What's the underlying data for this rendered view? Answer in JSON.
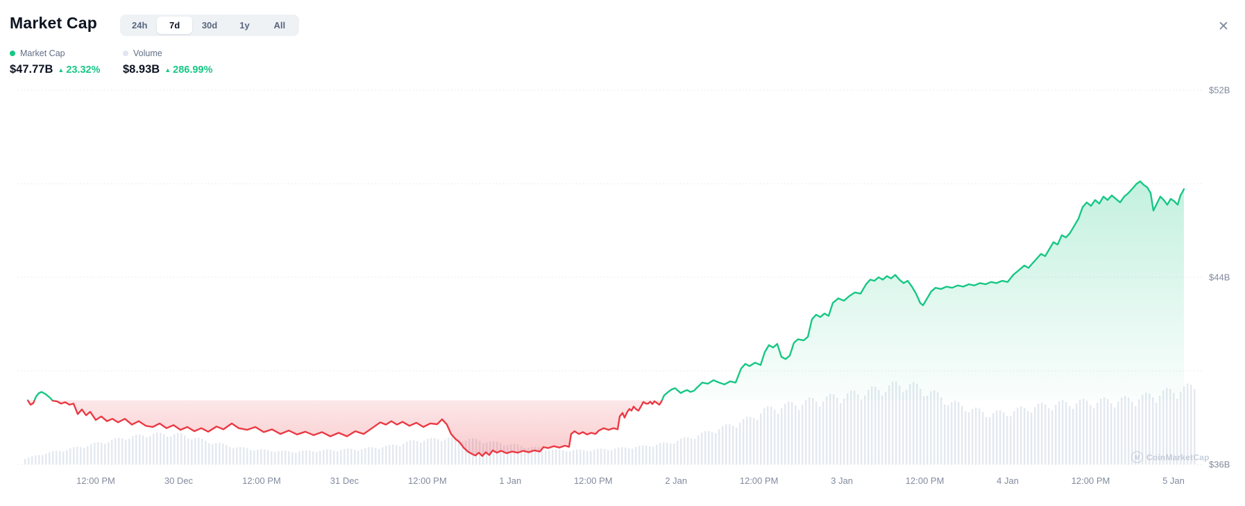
{
  "header": {
    "title": "Market Cap",
    "tabs": [
      "24h",
      "7d",
      "30d",
      "1y",
      "All"
    ],
    "active_tab": "7d",
    "close_icon": "✕"
  },
  "legend": {
    "market_cap": {
      "label": "Market Cap",
      "value": "$47.77B",
      "change": "23.32%",
      "direction": "up"
    },
    "volume": {
      "label": "Volume",
      "value": "$8.93B",
      "change": "286.99%",
      "direction": "up"
    }
  },
  "watermark": {
    "icon_letter": "M",
    "text": "CoinMarketCap"
  },
  "colors": {
    "green": "#16c784",
    "red": "#ea3943",
    "text_primary": "#0d1421",
    "text_secondary": "#616e85",
    "axis_label": "#808a9d",
    "volume_bar": "#e4e9f0",
    "gridline": "#e0e4ec",
    "tab_bar_bg": "#eff2f5",
    "watermark": "#bdc5d4"
  },
  "chart_data": {
    "type": "area",
    "title": "Market Cap",
    "range": "7d",
    "unit": "USD billions",
    "baseline_value": 38.74,
    "current_value": 47.77,
    "change_pct": 23.32,
    "volume_current": "$8.93B",
    "volume_change_pct": 286.99,
    "y_axis": {
      "labels": [
        "$52B",
        "$44B",
        "$36B"
      ],
      "label_values": [
        52,
        44,
        36
      ],
      "gridline_values": [
        52,
        48,
        44,
        40,
        36
      ]
    },
    "x_ticks": [
      "12:00 PM",
      "30 Dec",
      "12:00 PM",
      "31 Dec",
      "12:00 PM",
      "1 Jan",
      "12:00 PM",
      "2 Jan",
      "12:00 PM",
      "3 Jan",
      "12:00 PM",
      "4 Jan",
      "12:00 PM",
      "5 Jan"
    ],
    "hours_span": 166.6,
    "series": [
      {
        "name": "Market Cap",
        "points_unit": "[hours_from_start, value_in_billions_USD]",
        "points": [
          [
            0,
            38.74
          ],
          [
            0.4,
            38.55
          ],
          [
            0.8,
            38.62
          ],
          [
            1.2,
            38.9
          ],
          [
            1.6,
            39.05
          ],
          [
            2,
            39.1
          ],
          [
            2.6,
            39
          ],
          [
            3.2,
            38.85
          ],
          [
            3.6,
            38.72
          ],
          [
            4.2,
            38.7
          ],
          [
            4.8,
            38.6
          ],
          [
            5.4,
            38.66
          ],
          [
            6,
            38.55
          ],
          [
            6.6,
            38.6
          ],
          [
            7.2,
            38.15
          ],
          [
            7.8,
            38.35
          ],
          [
            8.4,
            38.1
          ],
          [
            9,
            38.25
          ],
          [
            9.8,
            37.9
          ],
          [
            10.6,
            38.05
          ],
          [
            11.4,
            37.85
          ],
          [
            12.2,
            37.95
          ],
          [
            13,
            37.8
          ],
          [
            14,
            37.95
          ],
          [
            15,
            37.7
          ],
          [
            16,
            37.85
          ],
          [
            17,
            37.65
          ],
          [
            18,
            37.6
          ],
          [
            19,
            37.75
          ],
          [
            20,
            37.55
          ],
          [
            21,
            37.68
          ],
          [
            22,
            37.48
          ],
          [
            23,
            37.6
          ],
          [
            24,
            37.42
          ],
          [
            25,
            37.55
          ],
          [
            26,
            37.4
          ],
          [
            27.2,
            37.62
          ],
          [
            28.2,
            37.5
          ],
          [
            29.4,
            37.75
          ],
          [
            30.4,
            37.55
          ],
          [
            31.6,
            37.48
          ],
          [
            32.8,
            37.6
          ],
          [
            34,
            37.38
          ],
          [
            35.2,
            37.5
          ],
          [
            36.4,
            37.3
          ],
          [
            37.6,
            37.45
          ],
          [
            38.8,
            37.28
          ],
          [
            40,
            37.4
          ],
          [
            41.2,
            37.25
          ],
          [
            42.4,
            37.38
          ],
          [
            43.6,
            37.2
          ],
          [
            44.8,
            37.35
          ],
          [
            46,
            37.2
          ],
          [
            47.2,
            37.42
          ],
          [
            48.4,
            37.3
          ],
          [
            49.6,
            37.55
          ],
          [
            50.8,
            37.8
          ],
          [
            51.6,
            37.7
          ],
          [
            52.4,
            37.85
          ],
          [
            53.2,
            37.7
          ],
          [
            54,
            37.82
          ],
          [
            55,
            37.65
          ],
          [
            56,
            37.78
          ],
          [
            57,
            37.6
          ],
          [
            58,
            37.75
          ],
          [
            59,
            37.72
          ],
          [
            59.7,
            37.93
          ],
          [
            60.4,
            37.7
          ],
          [
            61,
            37.3
          ],
          [
            61.6,
            37.1
          ],
          [
            62.2,
            36.95
          ],
          [
            62.8,
            36.72
          ],
          [
            63.4,
            36.55
          ],
          [
            64,
            36.45
          ],
          [
            64.5,
            36.38
          ],
          [
            65,
            36.5
          ],
          [
            65.5,
            36.36
          ],
          [
            66,
            36.52
          ],
          [
            66.5,
            36.4
          ],
          [
            67,
            36.6
          ],
          [
            67.6,
            36.5
          ],
          [
            68.2,
            36.58
          ],
          [
            69,
            36.48
          ],
          [
            69.8,
            36.55
          ],
          [
            70.6,
            36.5
          ],
          [
            71.4,
            36.58
          ],
          [
            72.2,
            36.52
          ],
          [
            73,
            36.6
          ],
          [
            73.8,
            36.55
          ],
          [
            74.3,
            36.74
          ],
          [
            75,
            36.7
          ],
          [
            75.8,
            36.78
          ],
          [
            76.6,
            36.72
          ],
          [
            77.4,
            36.8
          ],
          [
            78,
            36.75
          ],
          [
            78.3,
            37.3
          ],
          [
            78.8,
            37.42
          ],
          [
            79.4,
            37.3
          ],
          [
            80,
            37.38
          ],
          [
            80.6,
            37.28
          ],
          [
            81.2,
            37.35
          ],
          [
            81.8,
            37.3
          ],
          [
            82.3,
            37.45
          ],
          [
            83,
            37.55
          ],
          [
            83.7,
            37.48
          ],
          [
            84.4,
            37.55
          ],
          [
            85,
            37.5
          ],
          [
            85.3,
            38.05
          ],
          [
            85.7,
            38.2
          ],
          [
            86,
            38
          ],
          [
            86.4,
            38.25
          ],
          [
            86.7,
            38.37
          ],
          [
            87,
            38.3
          ],
          [
            87.3,
            38.47
          ],
          [
            87.7,
            38.35
          ],
          [
            88,
            38.3
          ],
          [
            88.4,
            38.5
          ],
          [
            88.7,
            38.67
          ],
          [
            89.1,
            38.6
          ],
          [
            89.4,
            38.6
          ],
          [
            89.7,
            38.68
          ],
          [
            90,
            38.58
          ],
          [
            90.3,
            38.7
          ],
          [
            90.7,
            38.62
          ],
          [
            91,
            38.55
          ],
          [
            91.3,
            38.68
          ],
          [
            91.7,
            38.95
          ],
          [
            92.1,
            39.05
          ],
          [
            92.5,
            39.15
          ],
          [
            92.9,
            39.22
          ],
          [
            93.3,
            39.26
          ],
          [
            93.7,
            39.15
          ],
          [
            94.1,
            39.05
          ],
          [
            94.5,
            39.12
          ],
          [
            95,
            39.18
          ],
          [
            95.5,
            39.1
          ],
          [
            96,
            39.15
          ],
          [
            96.5,
            39.3
          ],
          [
            97.2,
            39.5
          ],
          [
            98,
            39.45
          ],
          [
            98.8,
            39.6
          ],
          [
            99.6,
            39.5
          ],
          [
            100.4,
            39.42
          ],
          [
            101.2,
            39.55
          ],
          [
            102,
            39.5
          ],
          [
            102.8,
            40.1
          ],
          [
            103.4,
            40.3
          ],
          [
            104,
            40.2
          ],
          [
            104.8,
            40.35
          ],
          [
            105.6,
            40.25
          ],
          [
            106.2,
            40.8
          ],
          [
            106.8,
            41.1
          ],
          [
            107.4,
            41
          ],
          [
            108,
            41.15
          ],
          [
            108.6,
            40.6
          ],
          [
            109.2,
            40.5
          ],
          [
            109.8,
            40.65
          ],
          [
            110.4,
            41.2
          ],
          [
            111,
            41.35
          ],
          [
            111.8,
            41.3
          ],
          [
            112.4,
            41.45
          ],
          [
            113,
            42.2
          ],
          [
            113.6,
            42.4
          ],
          [
            114.2,
            42.3
          ],
          [
            114.8,
            42.45
          ],
          [
            115.4,
            42.35
          ],
          [
            116,
            42.9
          ],
          [
            116.8,
            43.1
          ],
          [
            117.6,
            43
          ],
          [
            118.4,
            43.2
          ],
          [
            119.2,
            43.35
          ],
          [
            120,
            43.3
          ],
          [
            120.8,
            43.7
          ],
          [
            121.4,
            43.9
          ],
          [
            122,
            43.85
          ],
          [
            122.6,
            44
          ],
          [
            123.2,
            43.9
          ],
          [
            123.8,
            44.05
          ],
          [
            124.4,
            43.95
          ],
          [
            125,
            44.1
          ],
          [
            125.6,
            43.9
          ],
          [
            126.2,
            43.75
          ],
          [
            126.8,
            43.85
          ],
          [
            127.4,
            43.6
          ],
          [
            128,
            43.3
          ],
          [
            128.6,
            42.9
          ],
          [
            129,
            42.8
          ],
          [
            129.6,
            43.1
          ],
          [
            130.2,
            43.4
          ],
          [
            130.8,
            43.55
          ],
          [
            131.6,
            43.5
          ],
          [
            132.4,
            43.6
          ],
          [
            133.2,
            43.55
          ],
          [
            134,
            43.65
          ],
          [
            134.8,
            43.6
          ],
          [
            135.6,
            43.7
          ],
          [
            136.4,
            43.65
          ],
          [
            137.2,
            43.75
          ],
          [
            138,
            43.7
          ],
          [
            138.8,
            43.8
          ],
          [
            139.6,
            43.75
          ],
          [
            140.4,
            43.85
          ],
          [
            141.2,
            43.8
          ],
          [
            142,
            44.1
          ],
          [
            142.8,
            44.3
          ],
          [
            143.6,
            44.5
          ],
          [
            144.2,
            44.4
          ],
          [
            144.8,
            44.6
          ],
          [
            145.4,
            44.8
          ],
          [
            146,
            45
          ],
          [
            146.6,
            44.9
          ],
          [
            147.2,
            45.2
          ],
          [
            147.8,
            45.5
          ],
          [
            148.4,
            45.4
          ],
          [
            149,
            45.8
          ],
          [
            149.6,
            45.7
          ],
          [
            150.2,
            45.9
          ],
          [
            150.8,
            46.2
          ],
          [
            151.4,
            46.5
          ],
          [
            152,
            47
          ],
          [
            152.6,
            47.2
          ],
          [
            153.2,
            47.05
          ],
          [
            153.8,
            47.3
          ],
          [
            154.4,
            47.15
          ],
          [
            155,
            47.45
          ],
          [
            155.6,
            47.3
          ],
          [
            156.2,
            47.5
          ],
          [
            156.8,
            47.35
          ],
          [
            157.4,
            47.2
          ],
          [
            158,
            47.45
          ],
          [
            158.6,
            47.6
          ],
          [
            159.2,
            47.8
          ],
          [
            159.8,
            48
          ],
          [
            160.3,
            48.1
          ],
          [
            160.8,
            47.95
          ],
          [
            161.3,
            47.85
          ],
          [
            161.8,
            47.6
          ],
          [
            162.2,
            46.85
          ],
          [
            162.7,
            47.15
          ],
          [
            163.2,
            47.45
          ],
          [
            163.7,
            47.3
          ],
          [
            164.2,
            47.1
          ],
          [
            164.7,
            47.35
          ],
          [
            165.2,
            47.25
          ],
          [
            165.7,
            47.1
          ],
          [
            166.1,
            47.5
          ],
          [
            166.4,
            47.65
          ],
          [
            166.6,
            47.77
          ]
        ]
      },
      {
        "name": "Volume",
        "points_unit": "[hours_from_start, bar_height_px_estimated]",
        "profile": [
          [
            -0.5,
            8
          ],
          [
            2,
            15
          ],
          [
            6,
            22
          ],
          [
            10,
            30
          ],
          [
            14,
            38
          ],
          [
            18,
            43
          ],
          [
            22,
            42
          ],
          [
            26,
            32
          ],
          [
            30,
            24
          ],
          [
            34,
            20
          ],
          [
            38,
            18
          ],
          [
            43,
            20
          ],
          [
            48,
            22
          ],
          [
            52,
            26
          ],
          [
            56,
            34
          ],
          [
            60,
            37
          ],
          [
            64,
            35
          ],
          [
            68,
            30
          ],
          [
            72,
            25
          ],
          [
            76,
            20
          ],
          [
            80,
            20
          ],
          [
            84,
            22
          ],
          [
            88,
            25
          ],
          [
            92,
            30
          ],
          [
            96,
            40
          ],
          [
            100,
            52
          ],
          [
            104,
            65
          ],
          [
            106,
            77
          ],
          [
            110,
            85
          ],
          [
            114,
            92
          ],
          [
            118,
            98
          ],
          [
            122,
            105
          ],
          [
            125,
            112
          ],
          [
            127,
            112
          ],
          [
            130,
            102
          ],
          [
            133,
            87
          ],
          [
            136,
            78
          ],
          [
            138,
            72
          ],
          [
            141,
            73
          ],
          [
            144,
            80
          ],
          [
            147,
            84
          ],
          [
            150,
            87
          ],
          [
            153,
            88
          ],
          [
            156,
            90
          ],
          [
            159,
            92
          ],
          [
            162,
            98
          ],
          [
            165,
            104
          ],
          [
            167,
            108
          ],
          [
            168.5,
            110
          ]
        ]
      }
    ]
  }
}
